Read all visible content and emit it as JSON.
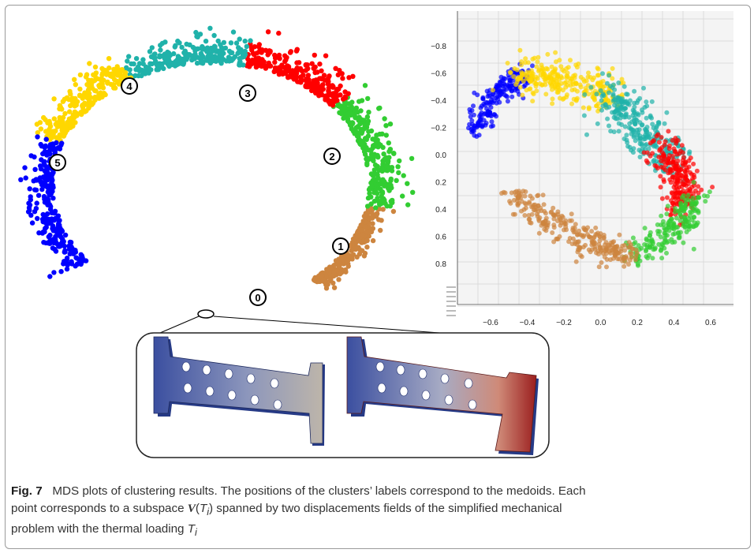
{
  "figure": {
    "label": "Fig. 7",
    "caption_line1": "MDS plots of clustering results. The positions of the clusters’ labels correspond to the medoids. Each",
    "caption_line2_pre": "point corresponds to a subspace ",
    "caption_sym": "V",
    "caption_line2_paren_open": "(",
    "caption_T": "T",
    "caption_sub": "i",
    "caption_line2_post": ") spanned by two displacements fields of the simplified mechanical",
    "caption_line3_pre": "problem with the thermal loading ",
    "caption_T3": "T",
    "caption_sub3": "i"
  },
  "colors": {
    "c0": "#cd853f",
    "c1": "#32cd32",
    "c2": "#ff0000",
    "c3": "#20b2aa",
    "c4": "#ffd700",
    "c5": "#0000ff"
  },
  "chart_data": [
    {
      "type": "scatter",
      "panel": "left-2d-mds",
      "axes": "none",
      "grid": false,
      "clusters": [
        {
          "label": "0",
          "color": "#cd853f"
        },
        {
          "label": "1",
          "color": "#32cd32"
        },
        {
          "label": "2",
          "color": "#ff0000"
        },
        {
          "label": "3",
          "color": "#20b2aa"
        },
        {
          "label": "4",
          "color": "#ffd700"
        },
        {
          "label": "5",
          "color": "#0000ff"
        }
      ]
    },
    {
      "type": "scatter",
      "panel": "right-3d-mds",
      "grid": true,
      "xticks": [
        "−0.6",
        "−0.4",
        "−0.2",
        "0.0",
        "0.2",
        "0.4",
        "0.6"
      ],
      "yticks": [
        "−0.8",
        "−0.6",
        "−0.4",
        "−0.2",
        "0.0",
        "0.2",
        "0.4",
        "0.6",
        "0.8"
      ],
      "xlim": [
        -0.7,
        0.65
      ],
      "ylim": [
        0.85,
        -0.85
      ],
      "clusters": [
        {
          "label": "0",
          "color": "#cd853f"
        },
        {
          "label": "1",
          "color": "#32cd32"
        },
        {
          "label": "2",
          "color": "#ff0000"
        },
        {
          "label": "3",
          "color": "#20b2aa"
        },
        {
          "label": "4",
          "color": "#ffd700"
        },
        {
          "label": "5",
          "color": "#0000ff"
        }
      ]
    }
  ]
}
